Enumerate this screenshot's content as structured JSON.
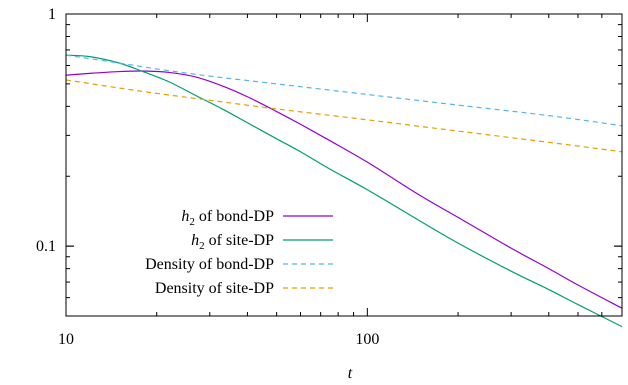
{
  "chart_data": {
    "type": "line",
    "xlabel": "t",
    "ylabel": "",
    "xscale": "log",
    "yscale": "log",
    "xlim": [
      10,
      700
    ],
    "ylim": [
      0.05,
      1
    ],
    "xticks": [
      {
        "value": 10,
        "label": "10"
      },
      {
        "value": 100,
        "label": "100"
      }
    ],
    "yticks": [
      {
        "value": 0.1,
        "label": "0.1"
      },
      {
        "value": 1,
        "label": "1"
      }
    ],
    "grid": false,
    "legend_position": "bottom-left",
    "series": [
      {
        "name": "h2 of bond-DP",
        "legend": {
          "prefix": "h",
          "subscript": "2",
          "suffix": " of bond-DP"
        },
        "color": "#9400d3",
        "style": "solid",
        "x": [
          10,
          12,
          15,
          18,
          22,
          27,
          33,
          40,
          50,
          60,
          75,
          100,
          150,
          200,
          300,
          400,
          500,
          700
        ],
        "y": [
          0.545,
          0.555,
          0.565,
          0.568,
          0.56,
          0.535,
          0.49,
          0.44,
          0.38,
          0.335,
          0.285,
          0.23,
          0.165,
          0.133,
          0.098,
          0.08,
          0.068,
          0.054
        ]
      },
      {
        "name": "h2 of site-DP",
        "legend": {
          "prefix": "h",
          "subscript": "2",
          "suffix": " of site-DP"
        },
        "color": "#009e73",
        "style": "solid",
        "x": [
          10,
          12,
          15,
          18,
          22,
          27,
          33,
          40,
          50,
          60,
          75,
          100,
          150,
          200,
          300,
          400,
          500,
          700
        ],
        "y": [
          0.665,
          0.655,
          0.615,
          0.565,
          0.51,
          0.445,
          0.39,
          0.34,
          0.29,
          0.255,
          0.215,
          0.175,
          0.128,
          0.103,
          0.078,
          0.065,
          0.056,
          0.045
        ]
      },
      {
        "name": "Density of bond-DP",
        "legend": {
          "prefix": "",
          "subscript": "",
          "suffix": "Density of bond-DP"
        },
        "color": "#56b4e9",
        "style": "dashed",
        "x": [
          10,
          15,
          20,
          30,
          50,
          100,
          200,
          400,
          700
        ],
        "y": [
          0.665,
          0.615,
          0.58,
          0.54,
          0.5,
          0.45,
          0.405,
          0.365,
          0.33
        ]
      },
      {
        "name": "Density of site-DP",
        "legend": {
          "prefix": "",
          "subscript": "",
          "suffix": "Density of site-DP"
        },
        "color": "#e69f00",
        "style": "dashed",
        "x": [
          10,
          15,
          20,
          30,
          50,
          100,
          200,
          400,
          700
        ],
        "y": [
          0.52,
          0.48,
          0.455,
          0.425,
          0.39,
          0.35,
          0.313,
          0.28,
          0.255
        ]
      }
    ]
  }
}
